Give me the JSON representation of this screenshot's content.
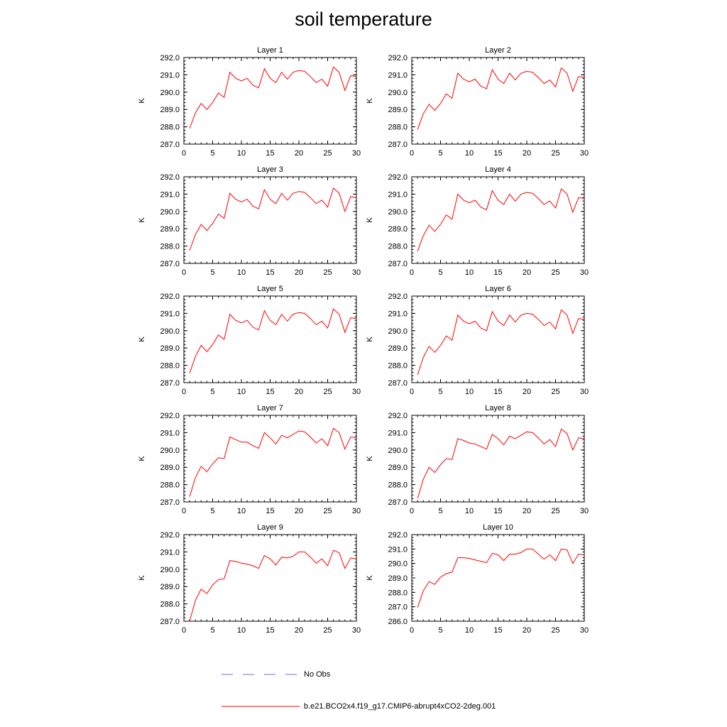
{
  "title": "soil temperature",
  "chart_data": {
    "type": "line",
    "ylabel": "K",
    "x": [
      1,
      2,
      3,
      4,
      5,
      6,
      7,
      8,
      9,
      10,
      11,
      12,
      13,
      14,
      15,
      16,
      17,
      18,
      19,
      20,
      21,
      22,
      23,
      24,
      25,
      26,
      27,
      28,
      29,
      30
    ],
    "xlim": [
      0,
      30
    ],
    "xticks": [
      0,
      5,
      10,
      15,
      20,
      25,
      30
    ],
    "panels": [
      {
        "title": "Layer 1",
        "ylim": [
          287.0,
          292.0
        ],
        "yticks": [
          287.0,
          288.0,
          289.0,
          290.0,
          291.0,
          292.0
        ],
        "series": [
          {
            "name": "b.e21.BCO2x4.f19_g17.CMIP6-abrupt4xCO2-2deg.001",
            "color": "#ff0000",
            "values": [
              287.9,
              288.8,
              289.35,
              289.0,
              289.4,
              289.95,
              289.7,
              291.15,
              290.8,
              290.65,
              290.8,
              290.4,
              290.25,
              291.35,
              290.8,
              290.55,
              291.15,
              290.75,
              291.15,
              291.25,
              291.2,
              290.9,
              290.55,
              290.75,
              290.35,
              291.45,
              291.15,
              290.1,
              290.95,
              290.9
            ]
          }
        ]
      },
      {
        "title": "Layer 2",
        "ylim": [
          287.0,
          292.0
        ],
        "yticks": [
          287.0,
          288.0,
          289.0,
          290.0,
          291.0,
          292.0
        ],
        "series": [
          {
            "name": "b.e21.BCO2x4.f19_g17.CMIP6-abrupt4xCO2-2deg.001",
            "color": "#ff0000",
            "values": [
              287.85,
              288.75,
              289.3,
              288.95,
              289.35,
              289.9,
              289.65,
              291.1,
              290.75,
              290.6,
              290.75,
              290.35,
              290.2,
              291.3,
              290.75,
              290.5,
              291.1,
              290.7,
              291.1,
              291.2,
              291.15,
              290.85,
              290.5,
              290.7,
              290.3,
              291.4,
              291.1,
              290.05,
              290.9,
              290.85
            ]
          }
        ]
      },
      {
        "title": "Layer 3",
        "ylim": [
          287.0,
          292.0
        ],
        "yticks": [
          287.0,
          288.0,
          289.0,
          290.0,
          291.0,
          292.0
        ],
        "series": [
          {
            "name": "b.e21.BCO2x4.f19_g17.CMIP6-abrupt4xCO2-2deg.001",
            "color": "#ff0000",
            "values": [
              287.75,
              288.65,
              289.25,
              288.9,
              289.3,
              289.85,
              289.6,
              291.05,
              290.7,
              290.55,
              290.7,
              290.3,
              290.15,
              291.25,
              290.7,
              290.45,
              291.05,
              290.65,
              291.05,
              291.15,
              291.1,
              290.8,
              290.45,
              290.65,
              290.25,
              291.35,
              291.05,
              290.0,
              290.85,
              290.8
            ]
          }
        ]
      },
      {
        "title": "Layer 4",
        "ylim": [
          287.0,
          292.0
        ],
        "yticks": [
          287.0,
          288.0,
          289.0,
          290.0,
          291.0,
          292.0
        ],
        "series": [
          {
            "name": "b.e21.BCO2x4.f19_g17.CMIP6-abrupt4xCO2-2deg.001",
            "color": "#ff0000",
            "values": [
              287.7,
              288.6,
              289.2,
              288.85,
              289.25,
              289.8,
              289.55,
              291.0,
              290.65,
              290.5,
              290.65,
              290.25,
              290.1,
              291.2,
              290.65,
              290.4,
              291.0,
              290.6,
              291.0,
              291.1,
              291.05,
              290.75,
              290.4,
              290.6,
              290.2,
              291.3,
              291.0,
              289.95,
              290.8,
              290.75
            ]
          }
        ]
      },
      {
        "title": "Layer 5",
        "ylim": [
          287.0,
          292.0
        ],
        "yticks": [
          287.0,
          288.0,
          289.0,
          290.0,
          291.0,
          292.0
        ],
        "series": [
          {
            "name": "b.e21.BCO2x4.f19_g17.CMIP6-abrupt4xCO2-2deg.001",
            "color": "#ff0000",
            "values": [
              287.55,
              288.5,
              289.15,
              288.8,
              289.2,
              289.75,
              289.5,
              290.95,
              290.6,
              290.45,
              290.6,
              290.2,
              290.05,
              291.15,
              290.6,
              290.35,
              290.95,
              290.55,
              290.95,
              291.05,
              291.0,
              290.7,
              290.35,
              290.55,
              290.15,
              291.25,
              290.95,
              289.9,
              290.75,
              290.7
            ]
          }
        ]
      },
      {
        "title": "Layer 6",
        "ylim": [
          287.0,
          292.0
        ],
        "yticks": [
          287.0,
          288.0,
          289.0,
          290.0,
          291.0,
          292.0
        ],
        "series": [
          {
            "name": "b.e21.BCO2x4.f19_g17.CMIP6-abrupt4xCO2-2deg.001",
            "color": "#ff0000",
            "values": [
              287.45,
              288.45,
              289.1,
              288.75,
              289.15,
              289.7,
              289.45,
              290.9,
              290.55,
              290.4,
              290.55,
              290.15,
              290.0,
              291.1,
              290.55,
              290.3,
              290.9,
              290.5,
              290.9,
              291.0,
              290.95,
              290.65,
              290.3,
              290.5,
              290.1,
              291.2,
              290.9,
              289.85,
              290.7,
              290.65
            ]
          }
        ]
      },
      {
        "title": "Layer 7",
        "ylim": [
          287.0,
          292.0
        ],
        "yticks": [
          287.0,
          288.0,
          289.0,
          290.0,
          291.0,
          292.0
        ],
        "series": [
          {
            "name": "b.e21.BCO2x4.f19_g17.CMIP6-abrupt4xCO2-2deg.001",
            "color": "#ff0000",
            "values": [
              287.3,
              288.4,
              289.05,
              288.75,
              289.2,
              289.55,
              289.5,
              290.75,
              290.6,
              290.45,
              290.45,
              290.25,
              290.1,
              291.0,
              290.7,
              290.35,
              290.85,
              290.7,
              290.9,
              291.1,
              291.05,
              290.75,
              290.4,
              290.65,
              290.25,
              291.25,
              291.0,
              290.05,
              290.75,
              290.7
            ]
          }
        ]
      },
      {
        "title": "Layer 8",
        "ylim": [
          287.0,
          292.0
        ],
        "yticks": [
          287.0,
          288.0,
          289.0,
          290.0,
          291.0,
          292.0
        ],
        "series": [
          {
            "name": "b.e21.BCO2x4.f19_g17.CMIP6-abrupt4xCO2-2deg.001",
            "color": "#ff0000",
            "values": [
              287.2,
              288.3,
              289.0,
              288.7,
              289.15,
              289.5,
              289.45,
              290.65,
              290.55,
              290.4,
              290.35,
              290.2,
              290.05,
              290.9,
              290.65,
              290.3,
              290.8,
              290.65,
              290.85,
              291.05,
              291.0,
              290.7,
              290.35,
              290.6,
              290.2,
              291.2,
              290.95,
              290.0,
              290.7,
              290.65
            ]
          }
        ]
      },
      {
        "title": "Layer 9",
        "ylim": [
          287.0,
          292.0
        ],
        "yticks": [
          287.0,
          288.0,
          289.0,
          290.0,
          291.0,
          292.0
        ],
        "series": [
          {
            "name": "b.e21.BCO2x4.f19_g17.CMIP6-abrupt4xCO2-2deg.001",
            "color": "#ff0000",
            "values": [
              287.0,
              288.2,
              288.85,
              288.6,
              289.1,
              289.4,
              289.45,
              290.5,
              290.45,
              290.35,
              290.3,
              290.2,
              290.05,
              290.8,
              290.6,
              290.25,
              290.7,
              290.65,
              290.75,
              291.0,
              291.0,
              290.7,
              290.35,
              290.6,
              290.2,
              291.1,
              290.95,
              290.05,
              290.65,
              290.6
            ]
          }
        ]
      },
      {
        "title": "Layer 10",
        "ylim": [
          286.0,
          292.0
        ],
        "yticks": [
          286.0,
          287.0,
          288.0,
          289.0,
          290.0,
          291.0,
          292.0
        ],
        "series": [
          {
            "name": "b.e21.BCO2x4.f19_g17.CMIP6-abrupt4xCO2-2deg.001",
            "color": "#ff0000",
            "values": [
              286.95,
              288.1,
              288.75,
              288.55,
              289.05,
              289.3,
              289.4,
              290.4,
              290.4,
              290.35,
              290.25,
              290.15,
              290.05,
              290.7,
              290.6,
              290.2,
              290.65,
              290.65,
              290.75,
              291.0,
              291.0,
              290.65,
              290.3,
              290.6,
              290.2,
              291.0,
              290.95,
              290.0,
              290.65,
              290.6
            ]
          }
        ]
      }
    ]
  },
  "legend": [
    {
      "label": "No Obs",
      "color": "#6a6aff",
      "style": "dashed"
    },
    {
      "label": "b.e21.BCO2x4.f19_g17.CMIP6-abrupt4xCO2-2deg.001",
      "color": "#ff0000",
      "style": "solid"
    }
  ]
}
